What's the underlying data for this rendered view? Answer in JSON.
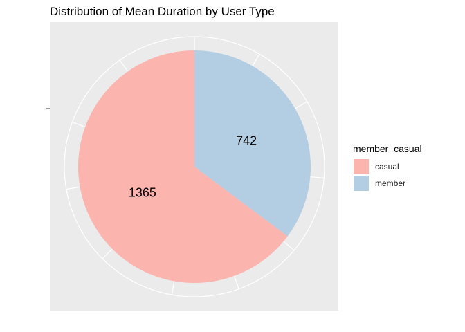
{
  "chart_data": {
    "type": "pie",
    "title": "Distribution of Mean Duration by User Type",
    "legend_title": "member_casual",
    "legend_position": "right",
    "grid": true,
    "categories": [
      "casual",
      "member"
    ],
    "values": [
      1365,
      742
    ],
    "data_labels": [
      "1365",
      "742"
    ],
    "colors": [
      "#FBB4AE",
      "#B3CDE3"
    ],
    "panel_background": "#EBEBEB",
    "grid_color": "#FFFFFF"
  }
}
